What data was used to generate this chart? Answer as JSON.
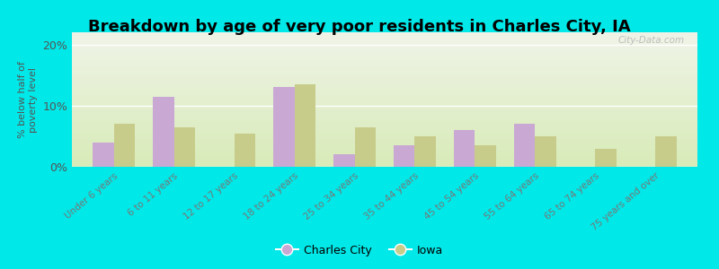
{
  "title": "Breakdown by age of very poor residents in Charles City, IA",
  "ylabel": "% below half of\npoverty level",
  "categories": [
    "Under 6 years",
    "6 to 11 years",
    "12 to 17 years",
    "18 to 24 years",
    "25 to 34 years",
    "35 to 44 years",
    "45 to 54 years",
    "55 to 64 years",
    "65 to 74 years",
    "75 years and over"
  ],
  "charles_city": [
    4.0,
    11.5,
    0,
    13.0,
    2.0,
    3.5,
    6.0,
    7.0,
    0,
    0
  ],
  "iowa": [
    7.0,
    6.5,
    5.5,
    13.5,
    6.5,
    5.0,
    3.5,
    5.0,
    3.0,
    5.0
  ],
  "charles_city_color": "#c9a8d4",
  "iowa_color": "#c8cc8a",
  "background_outer": "#00e8e8",
  "gradient_top": "#f0f4e8",
  "gradient_bottom": "#d8ebb8",
  "yticks": [
    0,
    10,
    20
  ],
  "ylim": [
    0,
    22
  ],
  "bar_width": 0.35,
  "title_fontsize": 13,
  "watermark": "City-Data.com"
}
